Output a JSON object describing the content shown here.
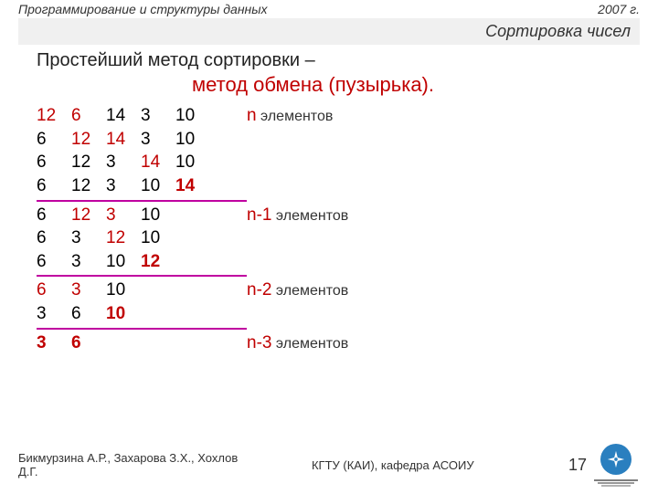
{
  "header": {
    "left": "Программирование  и структуры данных",
    "right": "2007 г."
  },
  "slide_title": "Сортировка чисел",
  "intro": "Простейший метод сортировки –",
  "method": "метод обмена (пузырька).",
  "colors": {
    "red": "#c00000",
    "magenta_line": "#c000a0",
    "text": "#333333",
    "bg": "#ffffff",
    "title_bg": "#f0f0f0",
    "logo_bg": "#2a7fbf"
  },
  "fontsize": {
    "header": 14,
    "title": 18,
    "intro": 20,
    "method": 22,
    "rows": 19,
    "footer": 13,
    "page": 18
  },
  "groups": [
    {
      "anno_n": "n",
      "anno_rest": " элементов",
      "rows": [
        [
          {
            "t": "12",
            "c": "red"
          },
          {
            "t": "6",
            "c": "red"
          },
          {
            "t": "14"
          },
          {
            "t": "3"
          },
          {
            "t": "10"
          }
        ],
        [
          {
            "t": "6"
          },
          {
            "t": "12",
            "c": "red"
          },
          {
            "t": "14",
            "c": "red"
          },
          {
            "t": "3"
          },
          {
            "t": "10"
          }
        ],
        [
          {
            "t": "6"
          },
          {
            "t": "12"
          },
          {
            "t": "3"
          },
          {
            "t": "14",
            "c": "red"
          },
          {
            "t": "10"
          }
        ],
        [
          {
            "t": "6"
          },
          {
            "t": "12"
          },
          {
            "t": "3"
          },
          {
            "t": "10"
          },
          {
            "t": "14",
            "c": "red",
            "b": true
          }
        ]
      ]
    },
    {
      "anno_n": "n-1",
      "anno_rest": " элементов",
      "rows": [
        [
          {
            "t": "6"
          },
          {
            "t": "12",
            "c": "red"
          },
          {
            "t": "3",
            "c": "red"
          },
          {
            "t": "10"
          }
        ],
        [
          {
            "t": "6"
          },
          {
            "t": "3"
          },
          {
            "t": "12",
            "c": "red"
          },
          {
            "t": "10"
          }
        ],
        [
          {
            "t": "6"
          },
          {
            "t": "3"
          },
          {
            "t": "10"
          },
          {
            "t": "12",
            "c": "red",
            "b": true
          }
        ]
      ]
    },
    {
      "anno_n": "n-2",
      "anno_rest": " элементов",
      "rows": [
        [
          {
            "t": "6",
            "c": "red"
          },
          {
            "t": "3",
            "c": "red"
          },
          {
            "t": "10"
          }
        ],
        [
          {
            "t": "3"
          },
          {
            "t": "6"
          },
          {
            "t": "10",
            "c": "red",
            "b": true
          }
        ]
      ]
    },
    {
      "anno_n": "n-3",
      "anno_rest": " элементов",
      "rows": [
        [
          {
            "t": "3",
            "c": "red",
            "b": true
          },
          {
            "t": "6",
            "c": "red",
            "b": true
          }
        ]
      ]
    }
  ],
  "footer": {
    "authors": "Бикмурзина А.Р., Захарова З.Х., Хохлов Д.Г.",
    "org": "КГТУ  (КАИ),   кафедра АСОИУ",
    "page": "17"
  }
}
